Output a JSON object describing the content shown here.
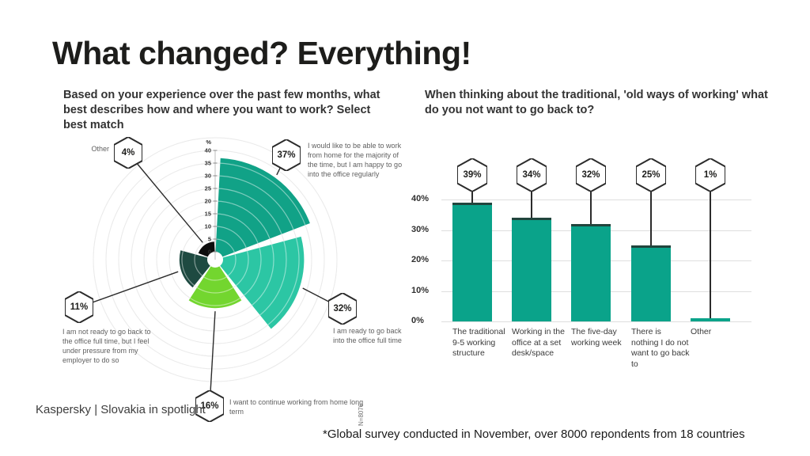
{
  "slide": {
    "title": "What changed? Everything!",
    "footer": "Kaspersky | Slovakia in spotlight",
    "footnote": "*Global survey conducted in November, over 8000 repondents from 18 countries"
  },
  "colors": {
    "teal": "#11A287",
    "turquoise": "#2CC6A4",
    "lime": "#73D62F",
    "dark_teal": "#1E4A41",
    "black": "#0D0D0D",
    "bar": "#0AA38A",
    "bar_cap": "#21453D",
    "grid": "#DEDEDE",
    "leader": "#2B2B2B"
  },
  "chart_data": [
    {
      "type": "polar_rose",
      "question": "Based on your experience over the past few months, what best describes how and where you want to work? Select best match",
      "unit": "%",
      "axis": {
        "min": 0,
        "max": 40,
        "tick_step": 5,
        "tick_labels": [
          "0",
          "5",
          "10",
          "15",
          "20",
          "25",
          "30",
          "35",
          "40"
        ]
      },
      "sample_note": "N=8076",
      "slices": [
        {
          "badge": "37%",
          "value": 37,
          "color": "#11A287",
          "label": "I would like to be able to work from home for the majority of the time, but I am happy to go into the office regularly"
        },
        {
          "badge": "32%",
          "value": 32,
          "color": "#2CC6A4",
          "label": "I am ready to go back into the office full time"
        },
        {
          "badge": "16%",
          "value": 16,
          "color": "#73D62F",
          "label": "I want to continue working from home long term"
        },
        {
          "badge": "11%",
          "value": 11,
          "color": "#1E4A41",
          "label": "I am not ready to go back to the office full time, but I feel under pressure from my employer to do so"
        },
        {
          "badge": "4%",
          "value": 4,
          "color": "#0D0D0D",
          "label": "Other"
        }
      ]
    },
    {
      "type": "bar",
      "question": "When thinking about the traditional, 'old ways of working' what do you not want to go back to?",
      "categories": [
        "The traditional 9-5 working structure",
        "Working in the office at a set desk/space",
        "The five-day working week",
        "There is nothing I do not want to go back to",
        "Other"
      ],
      "values": [
        39,
        34,
        32,
        25,
        1
      ],
      "badges": [
        "39%",
        "34%",
        "32%",
        "25%",
        "1%"
      ],
      "bar_color": "#0AA38A",
      "ylim": [
        0,
        45
      ],
      "yticks": [
        {
          "label": "40%",
          "value": 40
        },
        {
          "label": "30%",
          "value": 30
        },
        {
          "label": "20%",
          "value": 20
        },
        {
          "label": "10%",
          "value": 10
        },
        {
          "label": "0%",
          "value": 0
        }
      ]
    }
  ]
}
